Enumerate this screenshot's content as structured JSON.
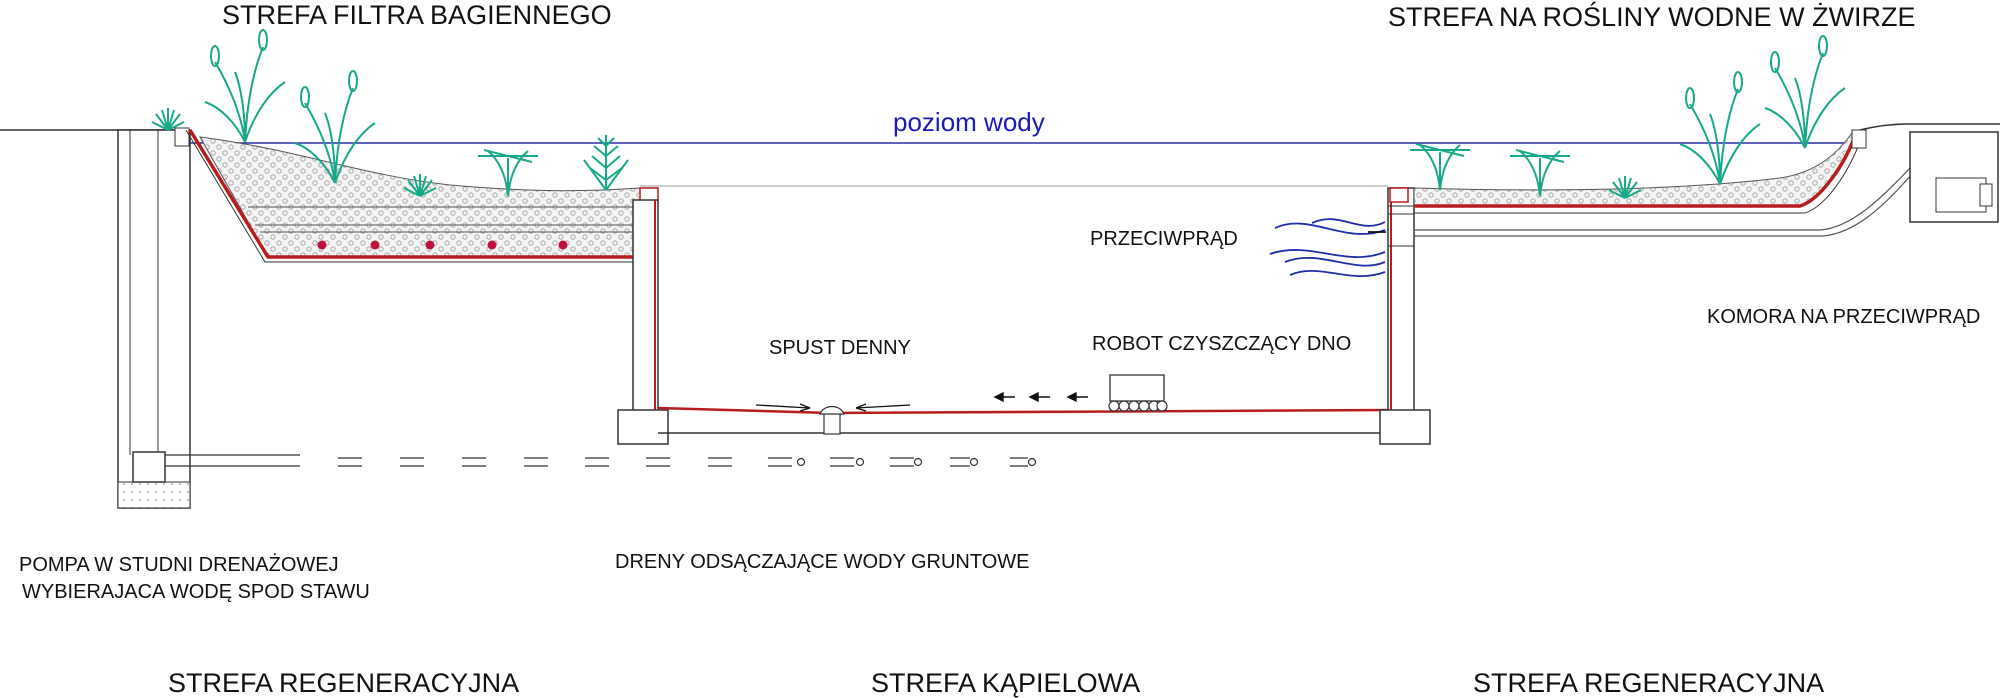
{
  "labels": {
    "top_left": "STREFA FILTRA  BAGIENNEGO",
    "top_right": "STREFA NA ROŚLINY WODNE W ŻWIRZE",
    "water_level": "poziom wody",
    "counter_current": "PRZECIWPRĄD",
    "counter_current_chamber": "KOMORA NA PRZECIWPRĄD",
    "bottom_drain": "SPUST DENNY",
    "cleaning_robot": "ROBOT CZYSZCZĄCY DNO",
    "pump_line1": "POMPA W STUDNI DRENAŻOWEJ",
    "pump_line2": "WYBIERAJACA WODĘ SPOD STAWU",
    "drains": "DRENY ODSĄCZAJĄCE WODY GRUNTOWE",
    "zone_left": "STREFA REGENERACYJNA",
    "zone_center": "STREFA KĄPIELOWA",
    "zone_right": "STREFA REGENERACYJNA"
  },
  "colors": {
    "water_line": "#2b2ba8",
    "liner": "#b81c1c",
    "plants": "#18a88a",
    "gravel": "#d9d9d9",
    "drain_dots": "#c0103c",
    "current_waves": "#1f2ea8"
  },
  "icons": [
    "plant-icon",
    "robot-icon",
    "drain-grate-icon",
    "arrow-icon",
    "pump-icon"
  ]
}
